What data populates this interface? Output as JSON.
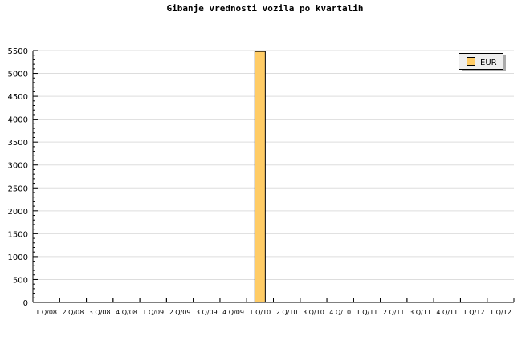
{
  "chart_data": {
    "type": "bar",
    "title": "Gibanje vrednosti vozila po kvartalih",
    "categories": [
      "1.Q/08",
      "2.Q/08",
      "3.Q/08",
      "4.Q/08",
      "1.Q/09",
      "2.Q/09",
      "3.Q/09",
      "4.Q/09",
      "1.Q/10",
      "2.Q/10",
      "3.Q/10",
      "4.Q/10",
      "1.Q/11",
      "2.Q/11",
      "3.Q/11",
      "4.Q/11",
      "1.Q/12",
      "1.Q/12"
    ],
    "series": [
      {
        "name": "EUR",
        "values": [
          0,
          0,
          0,
          0,
          0,
          0,
          0,
          0,
          5480,
          0,
          0,
          0,
          0,
          0,
          0,
          0,
          0,
          0
        ]
      }
    ],
    "ylim": [
      0,
      5500
    ],
    "yticks": [
      0,
      500,
      1000,
      1500,
      2000,
      2500,
      3000,
      3500,
      4000,
      4500,
      5000,
      5500
    ],
    "grid": true,
    "legend": "top-right",
    "colors": {
      "bar": "#ffcc66",
      "grid": "#dddddd",
      "legend_bg": "#eeeeee"
    }
  }
}
